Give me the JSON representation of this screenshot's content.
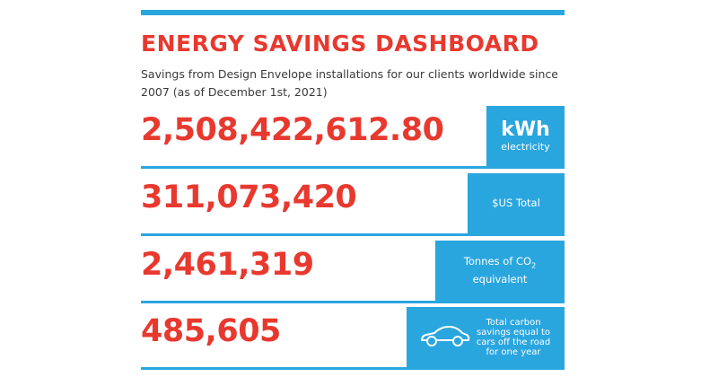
{
  "header": {
    "title": "ENERGY SAVINGS DASHBOARD",
    "subtitle": "Savings from Design Envelope installations for our clients worldwide since 2007 (as of December 1st, 2021)"
  },
  "metrics": [
    {
      "value": "2,508,422,612.80",
      "unit": "kWh",
      "label": "electricity"
    },
    {
      "value": "311,073,420",
      "label": "$US Total"
    },
    {
      "value": "2,461,319",
      "label_prefix": "Tonnes of CO",
      "label_subscript": "2",
      "label_suffix": "equivalent"
    },
    {
      "value": "485,605",
      "label": "Total carbon savings equal to cars off the road for one year",
      "icon": "car-icon"
    }
  ],
  "colors": {
    "accent_blue": "#2aa6df",
    "accent_red": "#e8392f",
    "text": "#3a3a3a"
  }
}
